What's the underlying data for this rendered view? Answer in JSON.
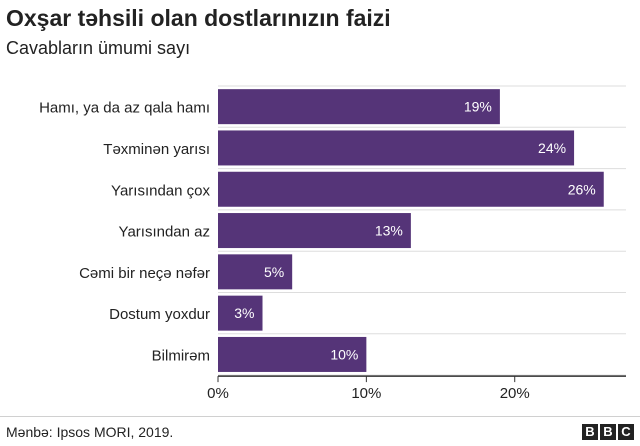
{
  "title": "Oxşar təhsili olan dostlarınızın faizi",
  "subtitle": "Cavabların ümumi sayı",
  "source": "Mənbə: Ipsos MORI, 2019.",
  "logo": [
    "B",
    "B",
    "C"
  ],
  "colors": {
    "bar": "#553478",
    "grid": "#dddddd",
    "axis": "#333333",
    "text": "#222222",
    "bar_label": "#ffffff"
  },
  "chart_data": {
    "type": "bar",
    "orientation": "horizontal",
    "title": "Oxşar təhsili olan dostlarınızın faizi",
    "subtitle": "Cavabların ümumi sayı",
    "categories": [
      "Hamı, ya da az qala hamı",
      "Təxminən yarısı",
      "Yarısından çox",
      "Yarısından az",
      "Cəmi bir neçə nəfər",
      "Dostum yoxdur",
      "Bilmirəm"
    ],
    "values": [
      19,
      24,
      26,
      13,
      5,
      3,
      10
    ],
    "value_labels": [
      "19%",
      "24%",
      "26%",
      "13%",
      "5%",
      "3%",
      "10%"
    ],
    "x_ticks": [
      0,
      10,
      20
    ],
    "x_tick_labels": [
      "0%",
      "10%",
      "20%"
    ],
    "xlim": [
      0,
      27.5
    ],
    "xlabel": "",
    "ylabel": "",
    "grid": true,
    "legend": "none"
  }
}
